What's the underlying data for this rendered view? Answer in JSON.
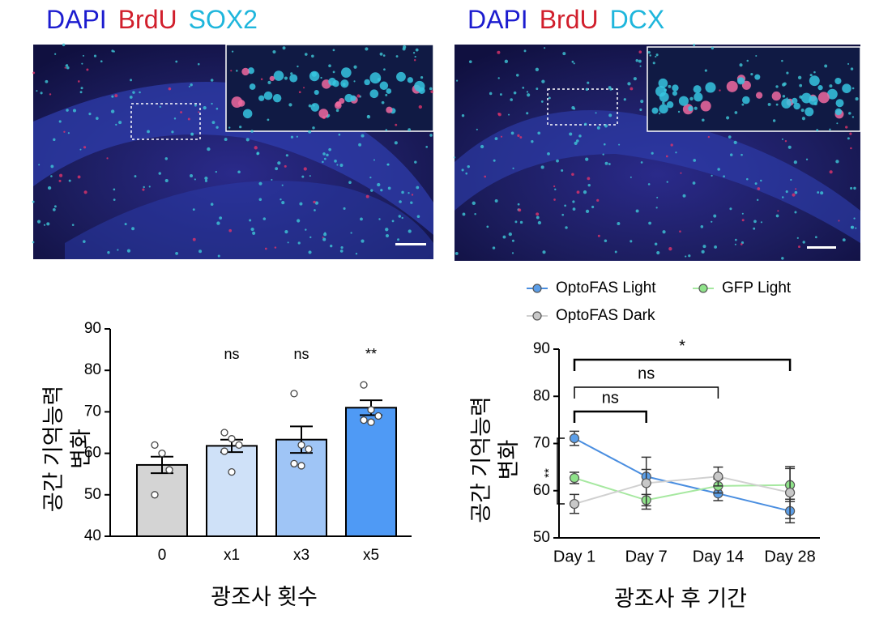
{
  "image_panels": [
    {
      "labels": [
        {
          "text": "DAPI",
          "color": "#1c1ccf"
        },
        {
          "text": "BrdU",
          "color": "#d11f2c"
        },
        {
          "text": "SOX2",
          "color": "#1fb6dc"
        }
      ]
    },
    {
      "labels": [
        {
          "text": "DAPI",
          "color": "#1c1ccf"
        },
        {
          "text": "BrdU",
          "color": "#d11f2c"
        },
        {
          "text": "DCX",
          "color": "#1fb6dc"
        }
      ]
    }
  ],
  "chart_data": [
    {
      "type": "bar",
      "categories": [
        "0",
        "x1",
        "x3",
        "x5"
      ],
      "values": [
        57.2,
        61.8,
        63.3,
        71.0
      ],
      "errors": [
        2.0,
        1.5,
        3.2,
        1.8
      ],
      "colors": [
        "#d4d4d4",
        "#cfe1f8",
        "#9fc5f6",
        "#4f9af5"
      ],
      "points": [
        [
          62,
          60,
          56,
          50
        ],
        [
          65,
          63.5,
          62,
          60.5,
          55.5
        ],
        [
          74.4,
          62,
          61,
          57.5,
          57
        ],
        [
          76.5,
          70.5,
          69,
          68,
          67.5
        ]
      ],
      "annotations": [
        null,
        "ns",
        "ns",
        "**"
      ],
      "ylim": [
        40,
        90
      ],
      "yticks": [
        40,
        50,
        60,
        70,
        80,
        90
      ],
      "ylabel": [
        "공간 기억능력",
        "변화"
      ],
      "xlabel": "광조사 횟수"
    },
    {
      "type": "line",
      "categories": [
        "Day 1",
        "Day 7",
        "Day 14",
        "Day 28"
      ],
      "series": [
        {
          "name": "OptoFAS Light",
          "color": "#4a8ee0",
          "fill": "#5b9ee8",
          "values": [
            71.1,
            63.0,
            59.4,
            55.7
          ],
          "errors": [
            1.5,
            1.5,
            1.5,
            2.5
          ]
        },
        {
          "name": "GFP Light",
          "color": "#a6e8a0",
          "fill": "#8fe38a",
          "values": [
            62.7,
            58.0,
            61.0,
            61.2
          ],
          "errors": [
            1.2,
            1.2,
            1.5,
            3.5
          ]
        },
        {
          "name": "OptoFAS Dark",
          "color": "#d0d0d0",
          "fill": "#c8c8c8",
          "values": [
            57.2,
            61.6,
            63.0,
            59.6
          ],
          "errors": [
            2.0,
            5.5,
            2.0,
            5.5
          ]
        }
      ],
      "brackets": [
        "ns",
        "ns",
        "*"
      ],
      "side_bracket": "**",
      "ylim": [
        50,
        90
      ],
      "yticks": [
        50,
        60,
        70,
        80,
        90
      ],
      "ylabel": [
        "공간 기억능력",
        "변화"
      ],
      "xlabel": "광조사 후 기간"
    }
  ]
}
